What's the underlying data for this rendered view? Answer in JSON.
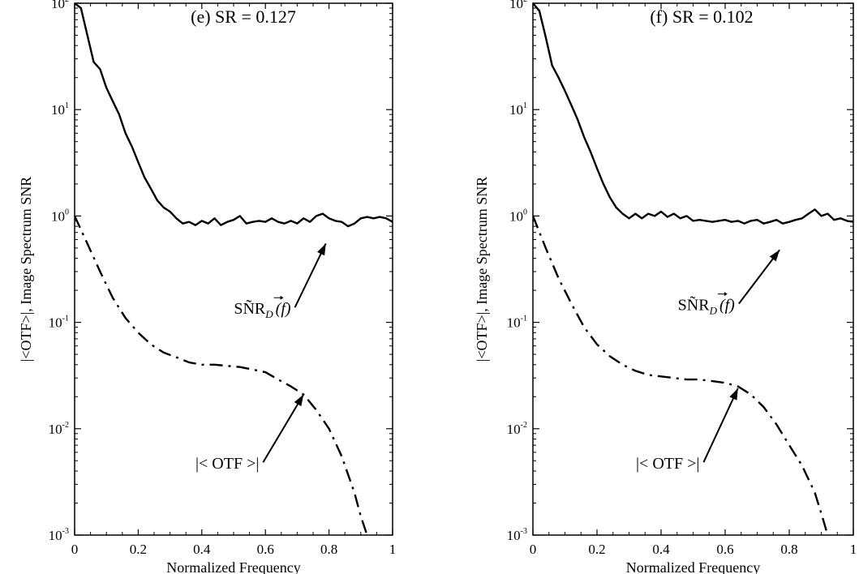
{
  "chart_data": [
    {
      "type": "line",
      "title": "(e)  SR = 0.127",
      "xlabel": "Normalized Frequency",
      "ylabel": "|<OTF>|, Image Spectrum SNR",
      "xlim": [
        0,
        1
      ],
      "ylim": [
        0.001,
        100
      ],
      "yscale": "log",
      "grid": false,
      "x_ticks": [
        "0",
        "0.2",
        "0.4",
        "0.6",
        "0.8",
        "1"
      ],
      "y_ticks": [
        {
          "base": "10",
          "exp": "-3"
        },
        {
          "base": "10",
          "exp": "-2"
        },
        {
          "base": "10",
          "exp": "-1"
        },
        {
          "base": "10",
          "exp": "0"
        },
        {
          "base": "10",
          "exp": "1"
        },
        {
          "base": "10",
          "exp": "2"
        }
      ],
      "annotations": {
        "snr": {
          "main": "SÑR",
          "sub": "D",
          "arg": "(f)",
          "x": 0.68,
          "y": 0.12,
          "arrow_to": [
            0.79,
            0.55
          ]
        },
        "otf": {
          "text": "|< OTF >|",
          "x": 0.58,
          "y": 0.0042,
          "arrow_to": [
            0.72,
            0.021
          ]
        }
      },
      "series": [
        {
          "style": "solid",
          "x": [
            0,
            0.02,
            0.04,
            0.06,
            0.08,
            0.1,
            0.12,
            0.14,
            0.16,
            0.18,
            0.2,
            0.22,
            0.24,
            0.26,
            0.28,
            0.3,
            0.32,
            0.34,
            0.36,
            0.38,
            0.4,
            0.42,
            0.44,
            0.46,
            0.48,
            0.5,
            0.52,
            0.54,
            0.56,
            0.58,
            0.6,
            0.62,
            0.64,
            0.66,
            0.68,
            0.7,
            0.72,
            0.74,
            0.76,
            0.78,
            0.8,
            0.82,
            0.84,
            0.86,
            0.88,
            0.9,
            0.92,
            0.94,
            0.96,
            0.98,
            1
          ],
          "y": [
            100,
            90,
            50,
            28,
            24,
            16,
            12,
            9,
            6,
            4.5,
            3.2,
            2.3,
            1.8,
            1.4,
            1.2,
            1.1,
            0.95,
            0.85,
            0.88,
            0.82,
            0.9,
            0.85,
            0.95,
            0.82,
            0.88,
            0.92,
            1.0,
            0.85,
            0.88,
            0.9,
            0.88,
            0.95,
            0.88,
            0.85,
            0.9,
            0.85,
            0.95,
            0.88,
            1.0,
            1.05,
            0.95,
            0.9,
            0.88,
            0.8,
            0.85,
            0.95,
            0.98,
            0.95,
            0.98,
            0.95,
            0.88
          ]
        },
        {
          "style": "dash-dot",
          "x": [
            0,
            0.04,
            0.08,
            0.12,
            0.16,
            0.2,
            0.24,
            0.28,
            0.32,
            0.36,
            0.4,
            0.44,
            0.48,
            0.52,
            0.56,
            0.6,
            0.64,
            0.68,
            0.72,
            0.76,
            0.8,
            0.84,
            0.88,
            0.9,
            0.92
          ],
          "y": [
            1.0,
            0.55,
            0.3,
            0.17,
            0.11,
            0.08,
            0.062,
            0.052,
            0.047,
            0.042,
            0.04,
            0.04,
            0.039,
            0.038,
            0.036,
            0.034,
            0.029,
            0.025,
            0.021,
            0.015,
            0.01,
            0.0055,
            0.0025,
            0.0015,
            0.001
          ]
        }
      ]
    },
    {
      "type": "line",
      "title": "(f)  SR = 0.102",
      "xlabel": "Normalized Frequency",
      "ylabel": "|<OTF>|, Image Spectrum SNR",
      "xlim": [
        0,
        1
      ],
      "ylim": [
        0.001,
        100
      ],
      "yscale": "log",
      "grid": false,
      "x_ticks": [
        "0",
        "0.2",
        "0.4",
        "0.6",
        "0.8",
        "1"
      ],
      "y_ticks": [
        {
          "base": "10",
          "exp": "-3"
        },
        {
          "base": "10",
          "exp": "-2"
        },
        {
          "base": "10",
          "exp": "-1"
        },
        {
          "base": "10",
          "exp": "0"
        },
        {
          "base": "10",
          "exp": "1"
        },
        {
          "base": "10",
          "exp": "2"
        }
      ],
      "annotations": {
        "snr": {
          "main": "SÑR",
          "sub": "D",
          "arg": "(f)",
          "x": 0.63,
          "y": 0.13,
          "arrow_to": [
            0.77,
            0.48
          ]
        },
        "otf": {
          "text": "|< OTF >|",
          "x": 0.52,
          "y": 0.0042,
          "arrow_to": [
            0.64,
            0.024
          ]
        }
      },
      "series": [
        {
          "style": "solid",
          "x": [
            0,
            0.02,
            0.04,
            0.06,
            0.08,
            0.1,
            0.12,
            0.14,
            0.16,
            0.18,
            0.2,
            0.22,
            0.24,
            0.26,
            0.28,
            0.3,
            0.32,
            0.34,
            0.36,
            0.38,
            0.4,
            0.42,
            0.44,
            0.46,
            0.48,
            0.5,
            0.52,
            0.54,
            0.56,
            0.58,
            0.6,
            0.62,
            0.64,
            0.66,
            0.68,
            0.7,
            0.72,
            0.74,
            0.76,
            0.78,
            0.8,
            0.82,
            0.84,
            0.86,
            0.88,
            0.9,
            0.92,
            0.94,
            0.96,
            0.98,
            1
          ],
          "y": [
            100,
            85,
            48,
            26,
            20,
            15,
            11,
            8,
            5.5,
            4,
            2.8,
            2,
            1.5,
            1.2,
            1.05,
            0.95,
            1.05,
            0.95,
            1.05,
            1.0,
            1.1,
            0.98,
            1.05,
            0.95,
            1.0,
            0.9,
            0.92,
            0.9,
            0.88,
            0.9,
            0.92,
            0.88,
            0.9,
            0.85,
            0.9,
            0.92,
            0.85,
            0.88,
            0.92,
            0.85,
            0.88,
            0.92,
            0.95,
            1.05,
            1.15,
            1.0,
            1.05,
            0.92,
            0.95,
            0.9,
            0.88
          ]
        },
        {
          "style": "dash-dot",
          "x": [
            0,
            0.04,
            0.08,
            0.12,
            0.16,
            0.2,
            0.24,
            0.28,
            0.32,
            0.36,
            0.4,
            0.44,
            0.48,
            0.52,
            0.56,
            0.6,
            0.64,
            0.68,
            0.72,
            0.76,
            0.8,
            0.84,
            0.88,
            0.9,
            0.92
          ],
          "y": [
            1.0,
            0.5,
            0.26,
            0.15,
            0.09,
            0.062,
            0.048,
            0.04,
            0.035,
            0.032,
            0.031,
            0.03,
            0.029,
            0.029,
            0.028,
            0.027,
            0.025,
            0.021,
            0.016,
            0.011,
            0.007,
            0.0045,
            0.0025,
            0.0016,
            0.001
          ]
        }
      ]
    }
  ]
}
